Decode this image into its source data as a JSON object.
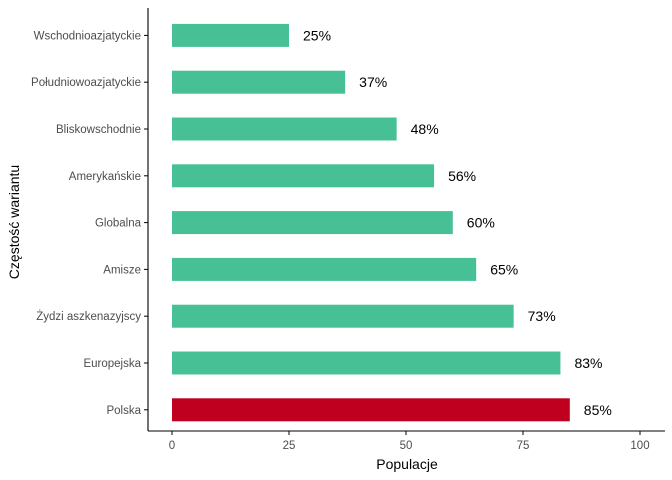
{
  "chart_data": {
    "type": "bar",
    "orientation": "horizontal",
    "title": "",
    "xlabel": "Populacje",
    "ylabel": "Częstość wariantu",
    "xlim": [
      0,
      100
    ],
    "xticks": [
      0,
      25,
      50,
      75,
      100
    ],
    "grid": false,
    "legend": "none",
    "categories": [
      "Polska",
      "Europejska",
      "Żydzi aszkenazyjscy",
      "Amisze",
      "Globalna",
      "Amerykańskie",
      "Bliskowschodnie",
      "Południowoazjatyckie",
      "Wschodnioazjatyckie"
    ],
    "values": [
      85,
      83,
      73,
      65,
      60,
      56,
      48,
      37,
      25
    ],
    "data_labels": [
      "85%",
      "83%",
      "73%",
      "65%",
      "60%",
      "56%",
      "48%",
      "37%",
      "25%"
    ],
    "colors": {
      "default_bar": "#48c095",
      "highlight_bar": "#c0001f",
      "axis_line": "#000000"
    },
    "highlight_category": "Polska"
  }
}
